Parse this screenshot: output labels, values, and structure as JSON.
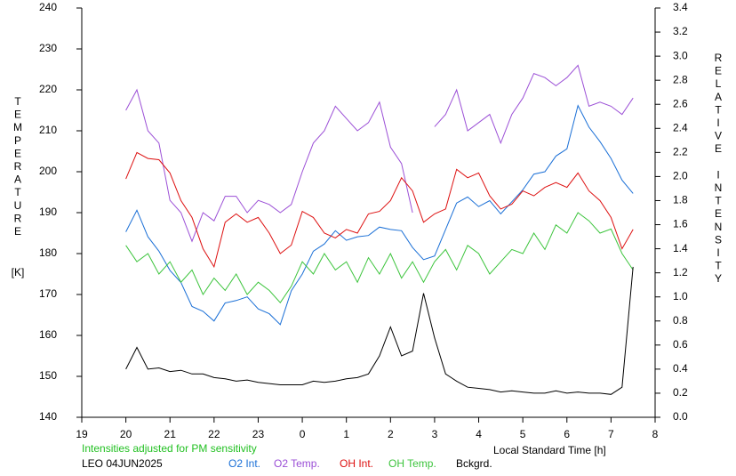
{
  "chart_data": {
    "type": "line",
    "y_label": "TEMPERATURE",
    "y_unit": "[K]",
    "y2_label": "RELATIVE INTENSITY",
    "x_label": "Local Standard Time [h]",
    "note": "Intensities adjusted for PM sensitivity",
    "note_color": "#22c022",
    "station": "LEO 04JUN2025",
    "xlim": [
      19,
      32
    ],
    "xticks": [
      19,
      20,
      21,
      22,
      23,
      {
        "value": 24,
        "label": "0"
      },
      {
        "value": 25,
        "label": "1"
      },
      {
        "value": 26,
        "label": "2"
      },
      {
        "value": 27,
        "label": "3"
      },
      {
        "value": 28,
        "label": "4"
      },
      {
        "value": 29,
        "label": "5"
      },
      {
        "value": 30,
        "label": "6"
      },
      {
        "value": 31,
        "label": "7"
      },
      {
        "value": 32,
        "label": "8"
      }
    ],
    "ylim": [
      140,
      240
    ],
    "yticks": [
      140,
      150,
      160,
      170,
      180,
      190,
      200,
      210,
      220,
      230,
      240
    ],
    "y2lim": [
      0,
      3.4
    ],
    "y2ticks": [
      {
        "value": 0,
        "label": "0.0"
      },
      0.2,
      0.4,
      0.6,
      0.8,
      {
        "value": 1,
        "label": "1.0"
      },
      1.2,
      1.4,
      1.6,
      1.8,
      {
        "value": 2,
        "label": "2.0"
      },
      2.2,
      2.4,
      2.6,
      2.8,
      {
        "value": 3,
        "label": "3.0"
      },
      3.2,
      3.4
    ],
    "x": [
      20,
      20.25,
      20.5,
      20.75,
      21,
      21.25,
      21.5,
      21.75,
      22,
      22.25,
      22.5,
      22.75,
      23,
      23.25,
      23.5,
      23.75,
      24,
      24.25,
      24.5,
      24.75,
      25,
      25.25,
      25.5,
      25.75,
      26,
      26.25,
      26.5,
      26.75,
      27,
      27.25,
      27.5,
      27.75,
      28,
      28.25,
      28.5,
      28.75,
      29,
      29.25,
      29.5,
      29.75,
      30,
      30.25,
      30.5,
      30.75,
      31,
      31.25,
      31.5
    ],
    "series": [
      {
        "name": "O2 Int.",
        "color": "#1a6fd6",
        "axis": "y2",
        "values": [
          1.54,
          1.72,
          1.5,
          1.38,
          1.22,
          1.12,
          0.92,
          0.88,
          0.8,
          0.95,
          0.97,
          1.0,
          0.9,
          0.86,
          0.77,
          1.05,
          1.19,
          1.38,
          1.44,
          1.55,
          1.47,
          1.5,
          1.51,
          1.58,
          1.56,
          1.55,
          1.41,
          1.31,
          1.34,
          1.56,
          1.78,
          1.83,
          1.75,
          1.8,
          1.69,
          1.79,
          1.89,
          2.02,
          2.04,
          2.17,
          2.23,
          2.59,
          2.41,
          2.29,
          2.15,
          1.97,
          1.86
        ]
      },
      {
        "name": "O2 Temp.",
        "color": "#9b4fd6",
        "values": [
          215,
          220,
          210,
          207,
          193,
          190,
          183,
          190,
          188,
          194,
          194,
          190,
          193,
          192,
          190,
          192,
          200,
          207,
          210,
          216,
          213,
          210,
          212,
          217,
          206,
          202,
          190,
          null,
          211,
          214,
          220,
          210,
          212,
          214,
          207,
          214,
          218,
          224,
          223,
          221,
          223,
          226,
          216,
          217,
          216,
          214,
          218
        ]
      },
      {
        "name": "OH Int.",
        "color": "#dd1010",
        "axis": "y2",
        "values": [
          1.98,
          2.2,
          2.15,
          2.14,
          2.03,
          1.8,
          1.66,
          1.4,
          1.25,
          1.62,
          1.69,
          1.62,
          1.66,
          1.53,
          1.36,
          1.43,
          1.71,
          1.66,
          1.53,
          1.49,
          1.56,
          1.53,
          1.69,
          1.71,
          1.8,
          1.99,
          1.88,
          1.62,
          1.69,
          1.73,
          2.06,
          1.99,
          2.03,
          1.84,
          1.73,
          1.77,
          1.88,
          1.84,
          1.91,
          1.95,
          1.91,
          2.03,
          1.88,
          1.8,
          1.66,
          1.4,
          1.56
        ]
      },
      {
        "name": "OH Temp.",
        "color": "#3cc43c",
        "values": [
          182,
          178,
          180,
          175,
          178,
          173,
          176,
          170,
          174,
          171,
          175,
          170,
          173,
          171,
          168,
          172,
          178,
          175,
          180,
          176,
          178,
          173,
          179,
          175,
          180,
          174,
          178,
          173,
          178,
          181,
          176,
          182,
          180,
          175,
          178,
          181,
          180,
          185,
          181,
          187,
          185,
          190,
          188,
          185,
          186,
          180,
          176
        ]
      },
      {
        "name": "Bckgrd.",
        "color": "#000000",
        "axis": "y2",
        "values": [
          0.4,
          0.58,
          0.4,
          0.41,
          0.38,
          0.39,
          0.36,
          0.36,
          0.33,
          0.32,
          0.3,
          0.31,
          0.29,
          0.28,
          0.27,
          0.27,
          0.27,
          0.3,
          0.29,
          0.3,
          0.32,
          0.33,
          0.36,
          0.51,
          0.75,
          0.51,
          0.55,
          1.03,
          0.66,
          0.36,
          0.3,
          0.25,
          0.24,
          0.23,
          0.21,
          0.22,
          0.21,
          0.2,
          0.2,
          0.22,
          0.2,
          0.21,
          0.2,
          0.2,
          0.19,
          0.25,
          1.25
        ]
      }
    ]
  }
}
